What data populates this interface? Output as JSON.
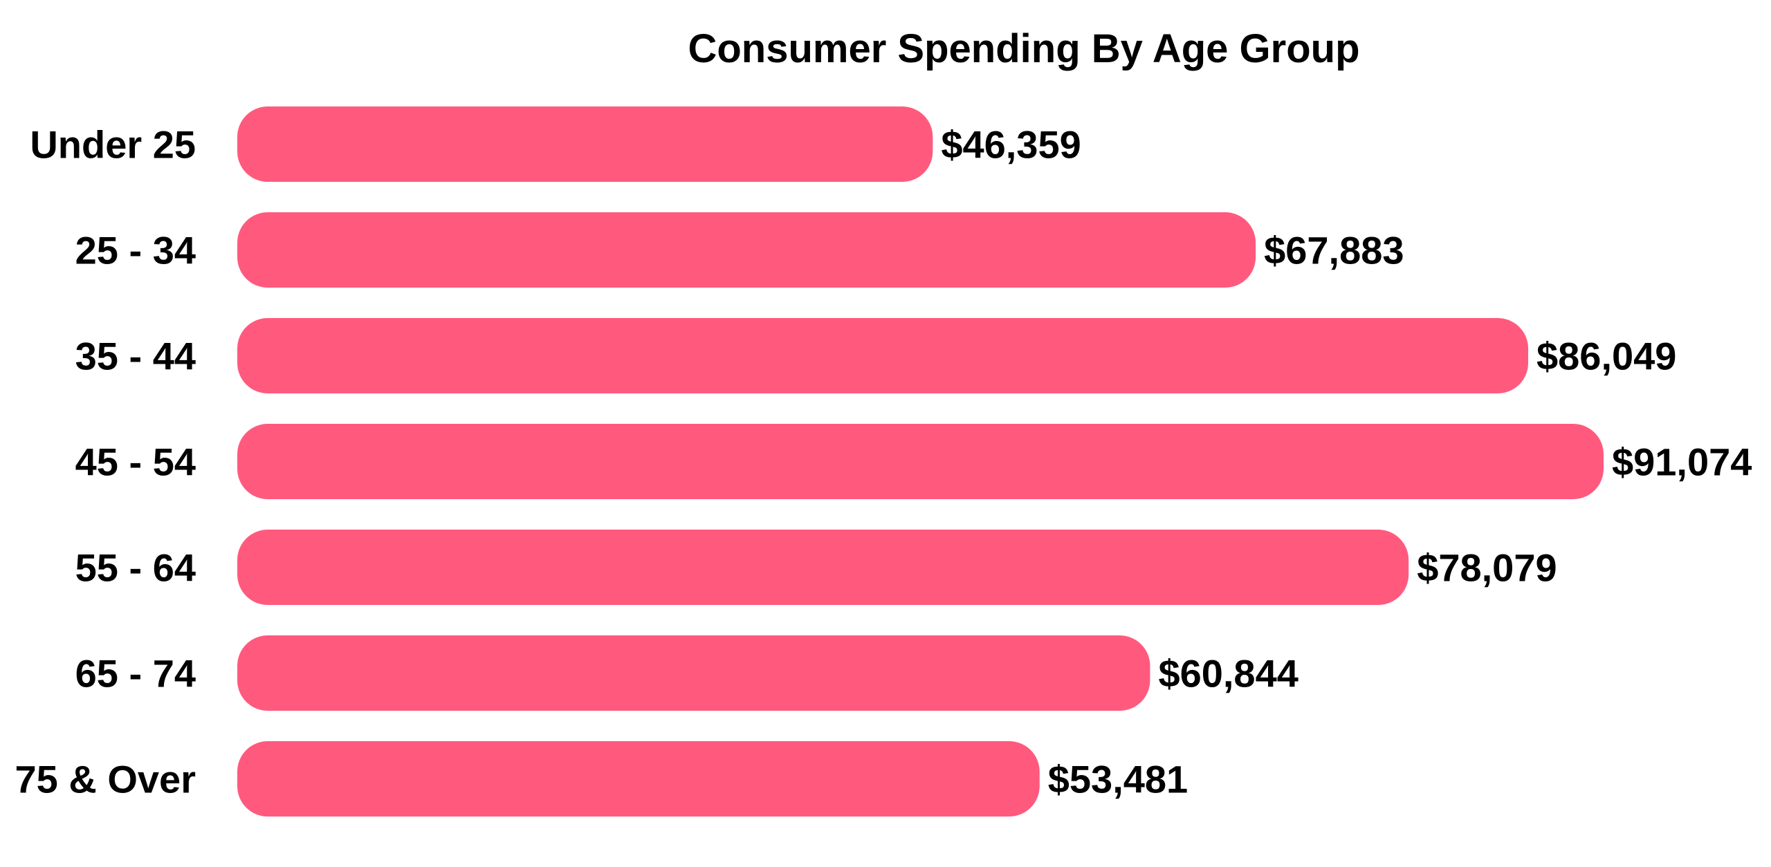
{
  "chart_data": {
    "type": "bar",
    "orientation": "horizontal",
    "title": "Consumer Spending By Age Group",
    "xlabel": "",
    "ylabel": "",
    "categories": [
      "Under 25",
      "25 - 34",
      "35 - 44",
      "45 - 54",
      "55 - 64",
      "65 - 74",
      "75 & Over"
    ],
    "values": [
      46359,
      67883,
      86049,
      91074,
      78079,
      60844,
      53481
    ],
    "value_labels": [
      "$46,359",
      "$67,883",
      "$86,049",
      "$91,074",
      "$78,079",
      "$60,844",
      "$53,481"
    ],
    "xlim": [
      0,
      91074
    ],
    "grid": false,
    "legend": "none",
    "bar_color": "#FF5A7E"
  }
}
